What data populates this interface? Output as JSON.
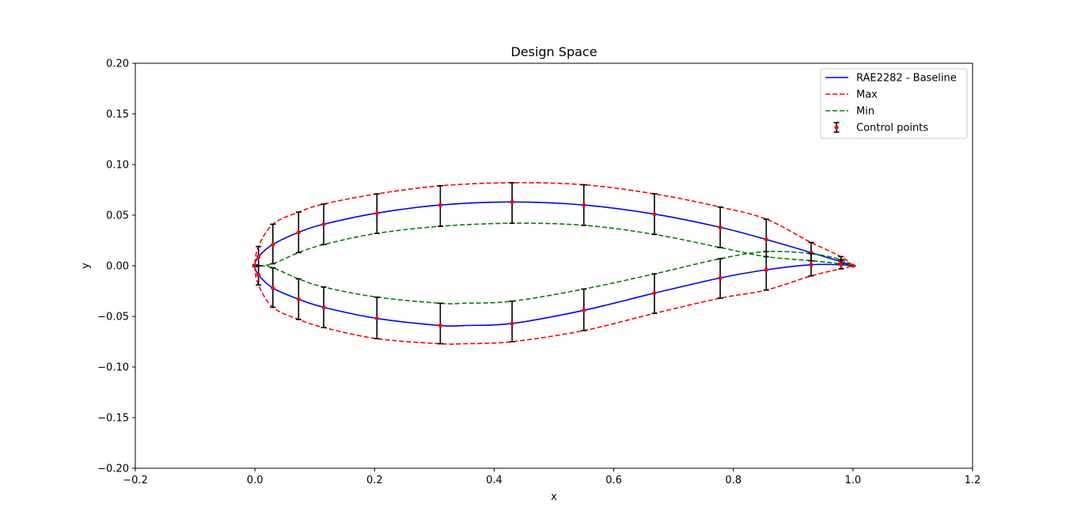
{
  "chart_data": {
    "type": "line",
    "title": "Design Space",
    "xlabel": "x",
    "ylabel": "y",
    "xlim": [
      -0.2,
      1.2
    ],
    "ylim": [
      -0.2,
      0.2
    ],
    "xticks": [
      "−0.2",
      "0.0",
      "0.2",
      "0.4",
      "0.6",
      "0.8",
      "1.0",
      "1.2"
    ],
    "yticks": [
      "−0.20",
      "−0.15",
      "−0.10",
      "−0.05",
      "0.00",
      "0.05",
      "0.10",
      "0.15",
      "0.20"
    ],
    "grid": false,
    "legend_position": "top-right",
    "series": [
      {
        "name": "RAE2282 - Baseline",
        "color": "#0000ff",
        "style": "solid",
        "x": [
          1.0,
          0.98,
          0.93,
          0.855,
          0.778,
          0.668,
          0.55,
          0.43,
          0.31,
          0.204,
          0.115,
          0.073,
          0.03,
          0.006,
          0.0,
          0.006,
          0.03,
          0.073,
          0.115,
          0.204,
          0.31,
          0.35,
          0.43,
          0.55,
          0.668,
          0.778,
          0.855,
          0.93,
          0.98,
          1.0
        ],
        "y": [
          0.0,
          0.004,
          0.013,
          0.026,
          0.038,
          0.051,
          0.06,
          0.063,
          0.06,
          0.052,
          0.041,
          0.033,
          0.021,
          0.009,
          0.0,
          -0.009,
          -0.022,
          -0.033,
          -0.041,
          -0.052,
          -0.059,
          -0.059,
          -0.057,
          -0.044,
          -0.027,
          -0.012,
          -0.004,
          0.001,
          0.001,
          0.0
        ]
      },
      {
        "name": "Max",
        "color": "#ff0000",
        "style": "dashed",
        "x": [
          1.0,
          0.98,
          0.93,
          0.855,
          0.778,
          0.668,
          0.55,
          0.43,
          0.31,
          0.204,
          0.115,
          0.073,
          0.03,
          0.006,
          0.0,
          0.006,
          0.03,
          0.073,
          0.115,
          0.204,
          0.31,
          0.35,
          0.43,
          0.55,
          0.668,
          0.778,
          0.855,
          0.93,
          0.98,
          1.0
        ],
        "y": [
          0.0,
          0.009,
          0.023,
          0.046,
          0.058,
          0.071,
          0.08,
          0.082,
          0.079,
          0.071,
          0.061,
          0.053,
          0.041,
          0.019,
          0.0,
          -0.019,
          -0.041,
          -0.053,
          -0.061,
          -0.072,
          -0.077,
          -0.077,
          -0.075,
          -0.064,
          -0.047,
          -0.032,
          -0.024,
          -0.01,
          -0.003,
          0.0
        ]
      },
      {
        "name": "Min",
        "color": "#008000",
        "style": "dashed",
        "x": [
          1.0,
          0.98,
          0.93,
          0.855,
          0.778,
          0.668,
          0.55,
          0.43,
          0.31,
          0.204,
          0.115,
          0.073,
          0.03,
          0.006,
          0.0,
          0.006,
          0.03,
          0.073,
          0.115,
          0.204,
          0.31,
          0.35,
          0.43,
          0.55,
          0.668,
          0.778,
          0.855,
          0.93,
          0.98,
          1.0
        ],
        "y": [
          0.0,
          0.002,
          0.005,
          0.009,
          0.018,
          0.031,
          0.04,
          0.042,
          0.039,
          0.032,
          0.021,
          0.013,
          0.002,
          0.0,
          0.0,
          0.0,
          -0.002,
          -0.013,
          -0.021,
          -0.031,
          -0.037,
          -0.037,
          -0.035,
          -0.023,
          -0.008,
          0.007,
          0.014,
          0.012,
          0.006,
          0.0
        ]
      }
    ],
    "control_points": {
      "name": "Control points",
      "color": "#ff0000",
      "errorbar_color": "#000000",
      "points": [
        {
          "x": 0.0,
          "y": 0.0,
          "lo": -0.001,
          "hi": 0.001
        },
        {
          "x": 0.006,
          "y": 0.009,
          "lo": 0.0,
          "hi": 0.019
        },
        {
          "x": 0.03,
          "y": 0.021,
          "lo": 0.002,
          "hi": 0.041
        },
        {
          "x": 0.073,
          "y": 0.033,
          "lo": 0.013,
          "hi": 0.053
        },
        {
          "x": 0.115,
          "y": 0.041,
          "lo": 0.021,
          "hi": 0.061
        },
        {
          "x": 0.204,
          "y": 0.052,
          "lo": 0.032,
          "hi": 0.071
        },
        {
          "x": 0.31,
          "y": 0.06,
          "lo": 0.039,
          "hi": 0.079
        },
        {
          "x": 0.43,
          "y": 0.063,
          "lo": 0.042,
          "hi": 0.082
        },
        {
          "x": 0.55,
          "y": 0.06,
          "lo": 0.04,
          "hi": 0.08
        },
        {
          "x": 0.668,
          "y": 0.051,
          "lo": 0.031,
          "hi": 0.071
        },
        {
          "x": 0.778,
          "y": 0.038,
          "lo": 0.018,
          "hi": 0.058
        },
        {
          "x": 0.855,
          "y": 0.026,
          "lo": 0.009,
          "hi": 0.046
        },
        {
          "x": 0.93,
          "y": 0.013,
          "lo": 0.005,
          "hi": 0.023
        },
        {
          "x": 0.98,
          "y": 0.004,
          "lo": 0.002,
          "hi": 0.009
        },
        {
          "x": 1.0,
          "y": 0.0,
          "lo": 0.0,
          "hi": 0.0
        },
        {
          "x": 0.006,
          "y": -0.009,
          "lo": -0.019,
          "hi": 0.0
        },
        {
          "x": 0.03,
          "y": -0.022,
          "lo": -0.041,
          "hi": -0.002
        },
        {
          "x": 0.073,
          "y": -0.033,
          "lo": -0.053,
          "hi": -0.013
        },
        {
          "x": 0.115,
          "y": -0.041,
          "lo": -0.061,
          "hi": -0.021
        },
        {
          "x": 0.204,
          "y": -0.052,
          "lo": -0.072,
          "hi": -0.031
        },
        {
          "x": 0.31,
          "y": -0.059,
          "lo": -0.077,
          "hi": -0.037
        },
        {
          "x": 0.43,
          "y": -0.057,
          "lo": -0.075,
          "hi": -0.035
        },
        {
          "x": 0.55,
          "y": -0.044,
          "lo": -0.064,
          "hi": -0.023
        },
        {
          "x": 0.668,
          "y": -0.027,
          "lo": -0.047,
          "hi": -0.008
        },
        {
          "x": 0.778,
          "y": -0.012,
          "lo": -0.032,
          "hi": 0.007
        },
        {
          "x": 0.855,
          "y": -0.004,
          "lo": -0.024,
          "hi": 0.014
        },
        {
          "x": 0.93,
          "y": 0.001,
          "lo": -0.01,
          "hi": 0.012
        },
        {
          "x": 0.98,
          "y": 0.001,
          "lo": -0.003,
          "hi": 0.006
        }
      ]
    }
  }
}
